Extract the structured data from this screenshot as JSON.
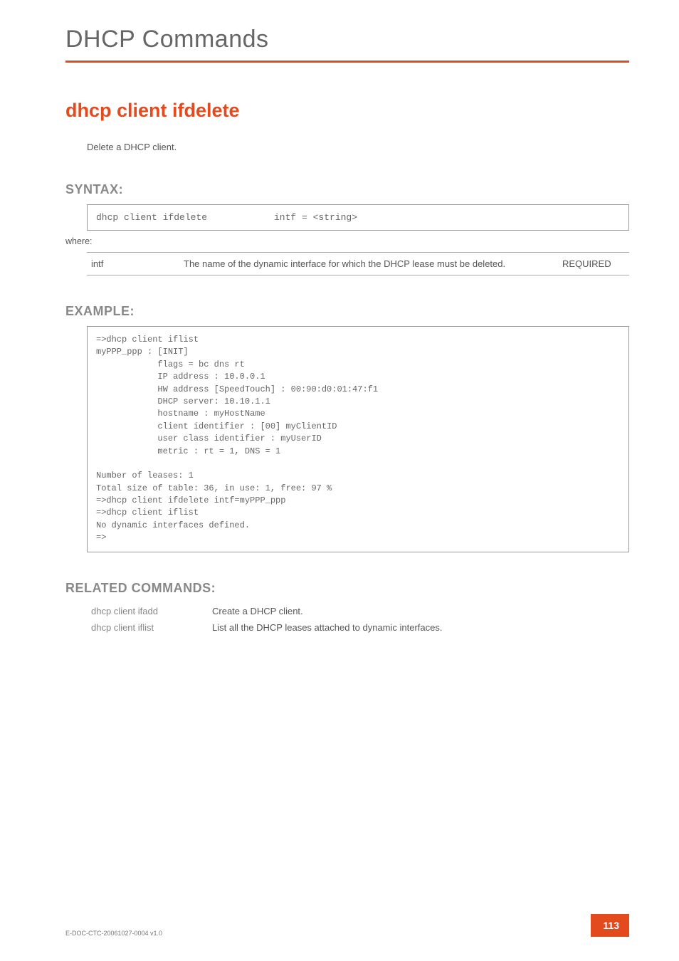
{
  "page": {
    "title": "DHCP Commands",
    "command": "dhcp client ifdelete",
    "description": "Delete a DHCP client.",
    "doc_ref": "E-DOC-CTC-20061027-0004 v1.0",
    "page_number": "113"
  },
  "sections": {
    "syntax_label": "SYNTAX:",
    "example_label": "EXAMPLE:",
    "related_label": "RELATED COMMANDS:",
    "where_label": "where:"
  },
  "syntax": {
    "command": "dhcp client ifdelete",
    "args": "intf = <string>"
  },
  "params": [
    {
      "name": "intf",
      "desc": "The name of the dynamic interface for which the DHCP lease must be deleted.",
      "req": "REQUIRED"
    }
  ],
  "example": "=>dhcp client iflist\nmyPPP_ppp : [INIT]\n            flags = bc dns rt\n            IP address : 10.0.0.1\n            HW address [SpeedTouch] : 00:90:d0:01:47:f1\n            DHCP server: 10.10.1.1\n            hostname : myHostName\n            client identifier : [00] myClientID\n            user class identifier : myUserID\n            metric : rt = 1, DNS = 1\n\nNumber of leases: 1\nTotal size of table: 36, in use: 1, free: 97 %\n=>dhcp client ifdelete intf=myPPP_ppp\n=>dhcp client iflist\nNo dynamic interfaces defined.\n=>",
  "related": [
    {
      "cmd": "dhcp client ifadd",
      "desc": "Create a DHCP client."
    },
    {
      "cmd": "dhcp client iflist",
      "desc": "List all the DHCP leases attached to dynamic interfaces."
    }
  ],
  "colors": {
    "accent": "#e34b1f",
    "heading_gray": "#888888",
    "text": "#555555",
    "mono": "#666666",
    "border": "#999999"
  },
  "fonts": {
    "body": "Arial",
    "mono": "Courier New",
    "title_size": 34,
    "command_size": 27,
    "section_size": 18,
    "body_size": 13,
    "mono_size": 12
  }
}
